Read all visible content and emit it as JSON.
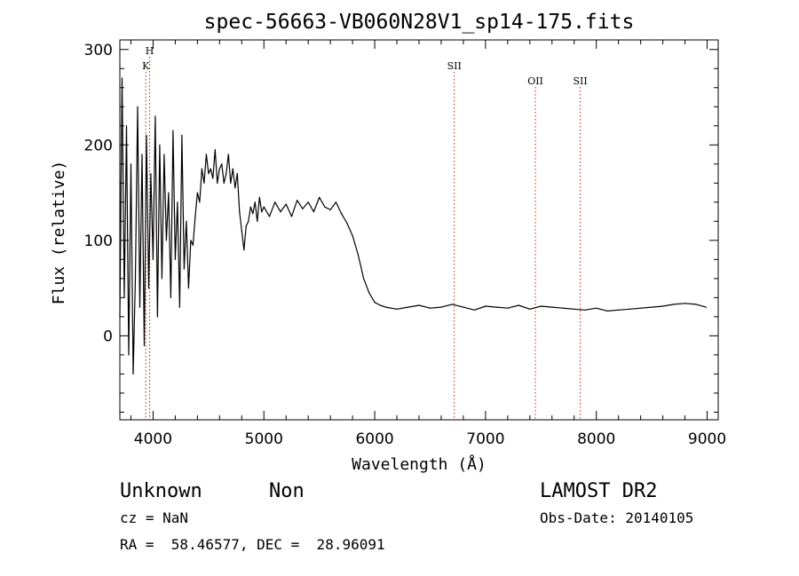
{
  "chart_data": {
    "type": "line",
    "title": "spec-56663-VB060N28V1_sp14-175.fits",
    "xlabel": "Wavelength (Å)",
    "ylabel": "Flux (relative)",
    "xlim": [
      3700,
      9100
    ],
    "ylim": [
      -88,
      310
    ],
    "xticks": [
      {
        "value": 4000,
        "label": "4000"
      },
      {
        "value": 5000,
        "label": "5000"
      },
      {
        "value": 6000,
        "label": "6000"
      },
      {
        "value": 7000,
        "label": "7000"
      },
      {
        "value": 8000,
        "label": "8000"
      },
      {
        "value": 9000,
        "label": "9000"
      }
    ],
    "yticks": [
      {
        "value": 0,
        "label": "0"
      },
      {
        "value": 100,
        "label": "100"
      },
      {
        "value": 200,
        "label": "200"
      },
      {
        "value": 300,
        "label": "300"
      }
    ],
    "grid": false,
    "series": [
      {
        "color": "#000000",
        "x": [
          3700,
          3720,
          3740,
          3760,
          3780,
          3800,
          3820,
          3840,
          3860,
          3880,
          3900,
          3920,
          3940,
          3960,
          3980,
          4000,
          4020,
          4040,
          4060,
          4080,
          4100,
          4120,
          4140,
          4160,
          4180,
          4200,
          4220,
          4240,
          4260,
          4280,
          4300,
          4320,
          4340,
          4360,
          4380,
          4400,
          4420,
          4440,
          4460,
          4480,
          4500,
          4520,
          4540,
          4560,
          4580,
          4600,
          4620,
          4640,
          4660,
          4680,
          4700,
          4720,
          4740,
          4760,
          4780,
          4800,
          4820,
          4840,
          4860,
          4880,
          4900,
          4920,
          4940,
          4960,
          4980,
          5000,
          5050,
          5100,
          5150,
          5200,
          5250,
          5300,
          5350,
          5400,
          5450,
          5500,
          5550,
          5600,
          5650,
          5700,
          5750,
          5800,
          5850,
          5900,
          5950,
          6000,
          6050,
          6100,
          6200,
          6300,
          6400,
          6500,
          6600,
          6700,
          6800,
          6900,
          7000,
          7100,
          7200,
          7300,
          7400,
          7500,
          7600,
          7700,
          7800,
          7900,
          8000,
          8100,
          8200,
          8300,
          8400,
          8500,
          8600,
          8700,
          8800,
          8900,
          8990
        ],
        "y": [
          20,
          270,
          40,
          220,
          -20,
          180,
          -40,
          60,
          240,
          30,
          190,
          -10,
          210,
          50,
          170,
          80,
          230,
          20,
          200,
          60,
          190,
          100,
          150,
          40,
          215,
          80,
          140,
          30,
          210,
          70,
          120,
          50,
          100,
          95,
          125,
          150,
          140,
          175,
          160,
          190,
          170,
          175,
          165,
          195,
          160,
          175,
          180,
          160,
          170,
          190,
          160,
          175,
          155,
          170,
          130,
          110,
          90,
          115,
          120,
          135,
          128,
          140,
          120,
          145,
          130,
          135,
          125,
          140,
          130,
          138,
          125,
          142,
          133,
          140,
          130,
          145,
          135,
          132,
          140,
          128,
          118,
          105,
          85,
          60,
          45,
          35,
          32,
          30,
          28,
          30,
          32,
          29,
          30,
          33,
          30,
          27,
          31,
          30,
          29,
          32,
          28,
          31,
          30,
          29,
          28,
          27,
          29,
          26,
          27,
          28,
          29,
          30,
          31,
          33,
          34,
          33,
          30
        ]
      }
    ],
    "line_markers": [
      {
        "label": "K",
        "x": 3934,
        "label_row": 2
      },
      {
        "label": "H",
        "x": 3969,
        "label_row": 1
      },
      {
        "label": "SII",
        "x": 6718,
        "label_row": 2
      },
      {
        "label": "OII",
        "x": 7450,
        "label_row": 3
      },
      {
        "label": "SII",
        "x": 7855,
        "label_row": 3
      }
    ],
    "marker_color": "#b22222"
  },
  "info": {
    "object_class": "Unknown",
    "subclass": "Non",
    "survey": "LAMOST DR2",
    "redshift": "cz = NaN",
    "obs_date": "Obs-Date: 20140105",
    "coordinates": "RA =  58.46577, DEC =  28.96091"
  }
}
